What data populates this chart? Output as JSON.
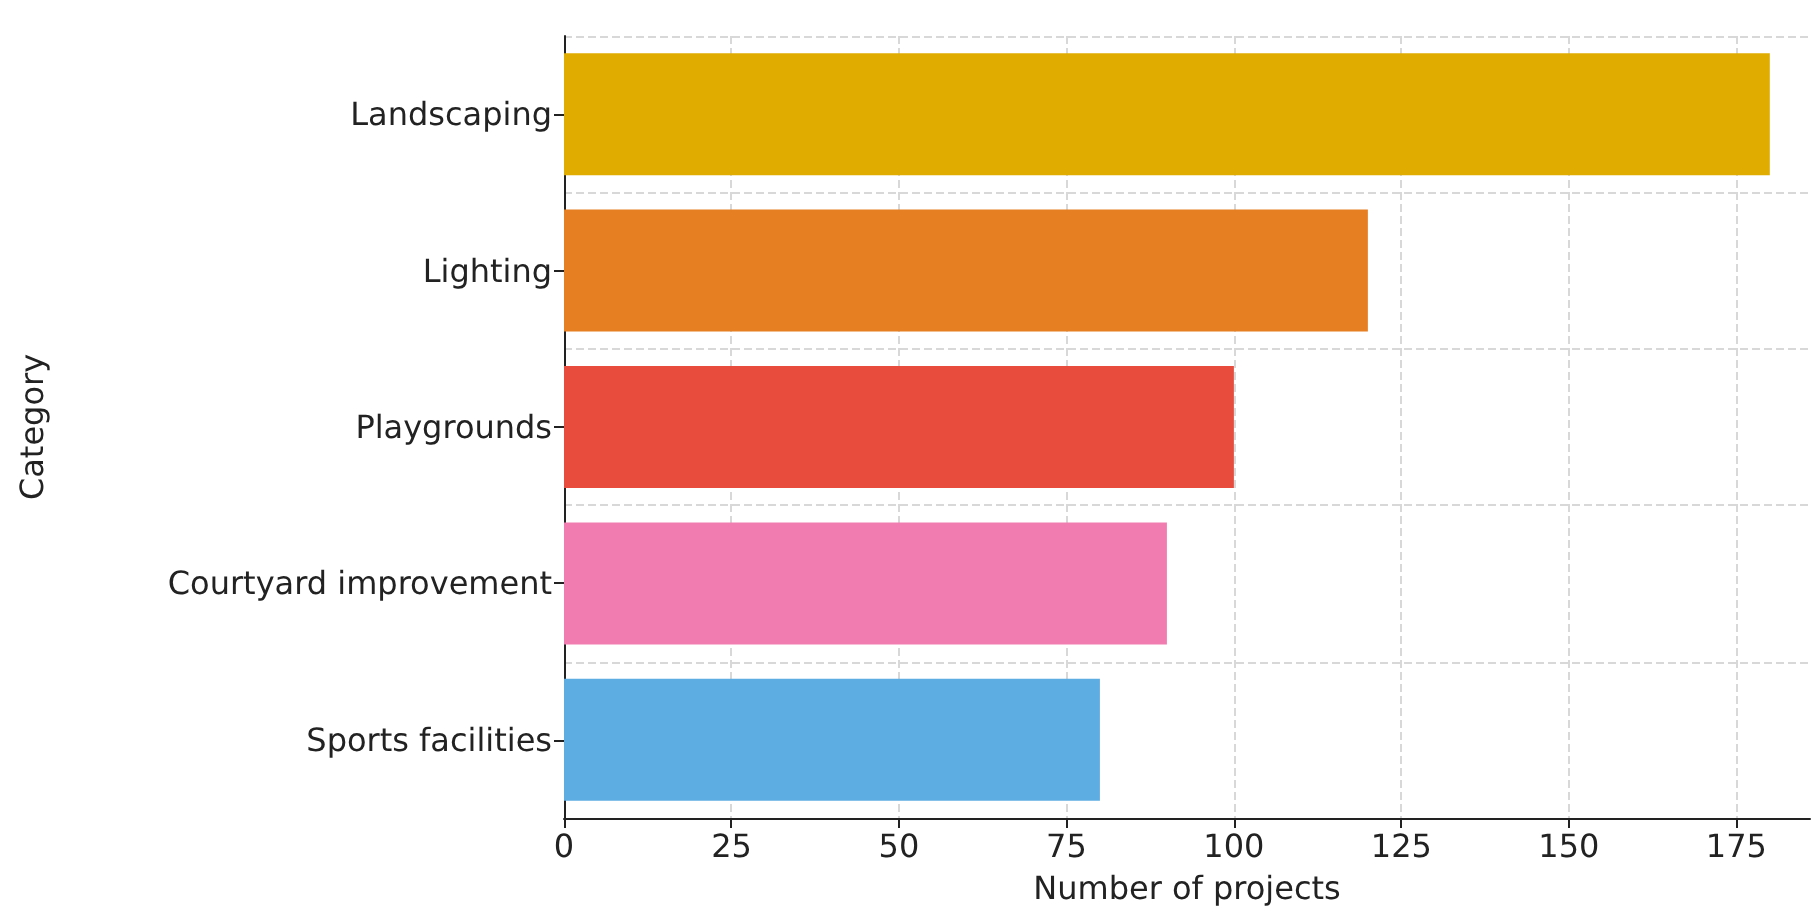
{
  "chart_data": {
    "type": "bar",
    "orientation": "horizontal",
    "xlabel": "Number of projects",
    "ylabel": "Category",
    "categories": [
      "Landscaping",
      "Lighting",
      "Playgrounds",
      "Courtyard improvement",
      "Sports facilities"
    ],
    "values": [
      180,
      120,
      100,
      90,
      80
    ],
    "colors": [
      "#e0ac00",
      "#e67e22",
      "#e74c3c",
      "#f17cb0",
      "#5dade2"
    ],
    "xlim": [
      0,
      186
    ],
    "xticks": [
      0,
      25,
      50,
      75,
      100,
      125,
      150,
      175
    ],
    "grid": true
  }
}
